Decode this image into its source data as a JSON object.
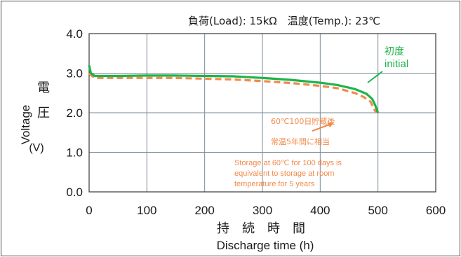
{
  "chart_data": {
    "type": "line",
    "condition_text": "負荷(Load): 15kΩ　温度(Temp.): 23℃",
    "ylabel_en": "Voltage",
    "ylabel_jp": [
      "電",
      "圧"
    ],
    "ylabel_unit": "(V)",
    "xlabel_jp": "持　続　時　間",
    "xlabel_en": "Discharge time (h)",
    "xlim": [
      0,
      600
    ],
    "ylim": [
      0,
      4.0
    ],
    "x_ticks": [
      "0",
      "100",
      "200",
      "300",
      "400",
      "500",
      "600"
    ],
    "y_ticks": [
      "0.0",
      "1.0",
      "2.0",
      "3.0",
      "4.0"
    ],
    "grid": true,
    "series": [
      {
        "name": "初度 initial",
        "label_lines": [
          "初度",
          "initial"
        ],
        "color": "#1fb34a",
        "style": "solid",
        "points": [
          [
            0,
            3.2
          ],
          [
            3,
            3.0
          ],
          [
            10,
            2.93
          ],
          [
            50,
            2.93
          ],
          [
            100,
            2.94
          ],
          [
            150,
            2.94
          ],
          [
            200,
            2.93
          ],
          [
            250,
            2.92
          ],
          [
            300,
            2.88
          ],
          [
            350,
            2.83
          ],
          [
            400,
            2.76
          ],
          [
            430,
            2.7
          ],
          [
            460,
            2.6
          ],
          [
            480,
            2.48
          ],
          [
            490,
            2.35
          ],
          [
            495,
            2.2
          ],
          [
            500,
            2.0
          ]
        ]
      },
      {
        "name": "60℃100日貯蔵後 常温5年間に相当",
        "label_lines": [
          "60℃100日貯蔵後",
          "常温5年間に相当"
        ],
        "note_lines": [
          "Storage at 60℃ for 100 days is",
          "equivalent to storage at room",
          "temperature for 5 years"
        ],
        "color": "#f28a4a",
        "style": "dashed",
        "points": [
          [
            0,
            3.0
          ],
          [
            3,
            2.95
          ],
          [
            10,
            2.88
          ],
          [
            50,
            2.88
          ],
          [
            100,
            2.88
          ],
          [
            150,
            2.88
          ],
          [
            200,
            2.86
          ],
          [
            250,
            2.84
          ],
          [
            300,
            2.8
          ],
          [
            350,
            2.75
          ],
          [
            400,
            2.68
          ],
          [
            430,
            2.62
          ],
          [
            460,
            2.5
          ],
          [
            475,
            2.4
          ],
          [
            487,
            2.28
          ],
          [
            493,
            2.1
          ],
          [
            497,
            2.0
          ]
        ]
      }
    ]
  }
}
